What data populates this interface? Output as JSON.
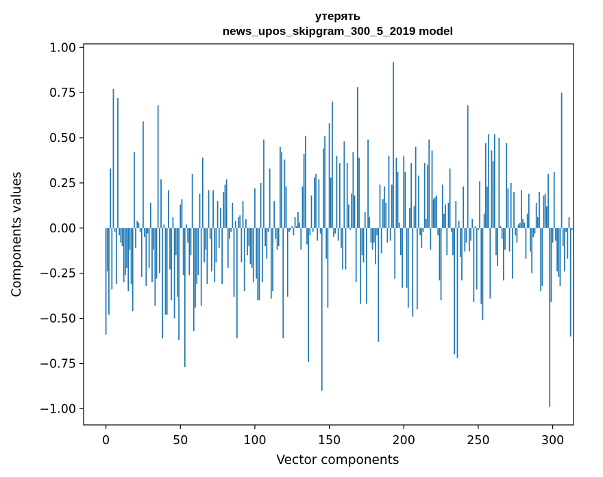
{
  "chart_data": {
    "type": "bar",
    "title_line1": "утерять",
    "title_line2": "news_upos_skipgram_300_5_2019 model",
    "xlabel": "Vector components",
    "ylabel": "Components values",
    "xlim": [
      -15,
      314
    ],
    "ylim": [
      -1.09,
      1.02
    ],
    "xticks": [
      0,
      50,
      100,
      150,
      200,
      250,
      300
    ],
    "yticks": [
      1.0,
      0.75,
      0.5,
      0.25,
      0.0,
      -0.25,
      -0.5,
      -0.75,
      -1.0
    ],
    "ytick_labels": [
      "1.00",
      "0.75",
      "0.50",
      "0.25",
      "0.00",
      "−0.25",
      "−0.50",
      "−0.75",
      "−1.00"
    ],
    "bar_color": "#1f77b4",
    "values": [
      -0.59,
      -0.24,
      -0.48,
      0.33,
      -0.34,
      0.77,
      -0.02,
      -0.31,
      0.72,
      -0.04,
      -0.08,
      -0.1,
      -0.3,
      -0.26,
      -0.22,
      -0.35,
      -0.12,
      -0.31,
      -0.46,
      0.42,
      -0.11,
      0.04,
      0.03,
      -0.02,
      -0.27,
      0.59,
      -0.05,
      -0.32,
      -0.03,
      -0.22,
      0.14,
      -0.3,
      -0.12,
      -0.43,
      -0.28,
      0.68,
      -0.25,
      0.27,
      -0.61,
      0.02,
      -0.48,
      -0.48,
      0.21,
      -0.23,
      -0.4,
      0.06,
      -0.5,
      -0.15,
      -0.38,
      -0.62,
      0.13,
      0.16,
      -0.26,
      -0.77,
      0.02,
      -0.08,
      -0.26,
      -0.15,
      0.3,
      -0.57,
      -0.44,
      -0.31,
      -0.26,
      0.19,
      -0.43,
      0.39,
      -0.19,
      -0.12,
      -0.31,
      0.21,
      -0.06,
      -0.24,
      0.21,
      -0.3,
      -0.19,
      0.15,
      -0.11,
      0.11,
      -0.31,
      0.2,
      0.24,
      0.27,
      -0.22,
      -0.06,
      -0.02,
      0.14,
      -0.38,
      0.04,
      -0.61,
      0.06,
      0.07,
      -0.19,
      0.15,
      -0.35,
      0.05,
      -0.15,
      -0.1,
      -0.2,
      -0.22,
      -0.3,
      0.22,
      -0.28,
      -0.4,
      -0.4,
      0.25,
      -0.3,
      0.49,
      -0.1,
      -0.17,
      -0.02,
      0.33,
      -0.39,
      -0.35,
      0.15,
      -0.06,
      -0.12,
      -0.1,
      0.45,
      0.42,
      -0.61,
      0.38,
      0.23,
      -0.38,
      -0.02,
      -0.01,
      0.01,
      -0.04,
      0.06,
      0.01,
      0.09,
      0.03,
      -0.12,
      0.23,
      0.41,
      0.51,
      -0.09,
      -0.74,
      -0.04,
      0.18,
      -0.02,
      0.28,
      0.3,
      -0.07,
      0.27,
      -0.03,
      -0.9,
      0.44,
      0.51,
      -0.17,
      -0.44,
      0.58,
      0.28,
      0.7,
      -0.05,
      -0.03,
      0.4,
      -0.07,
      0.36,
      -0.11,
      -0.23,
      0.48,
      -0.23,
      0.36,
      0.13,
      -0.01,
      0.19,
      0.42,
      0.18,
      -0.3,
      0.78,
      0.39,
      -0.42,
      -0.15,
      -0.19,
      0.09,
      -0.42,
      0.49,
      0.06,
      -0.08,
      -0.12,
      -0.08,
      -0.2,
      -0.04,
      -0.63,
      0.24,
      -0.14,
      0.16,
      0.23,
      0.14,
      -0.08,
      0.4,
      -0.07,
      0.24,
      0.92,
      -0.28,
      0.39,
      0.31,
      0.03,
      -0.15,
      -0.33,
      0.4,
      0.31,
      -0.33,
      -0.44,
      0.11,
      0.36,
      -0.49,
      0.12,
      0.45,
      -0.45,
      0.29,
      -0.04,
      -0.11,
      -0.02,
      0.36,
      0.05,
      0.35,
      0.49,
      -0.12,
      0.43,
      0.16,
      0.17,
      0.18,
      -0.04,
      -0.29,
      -0.4,
      0.24,
      0.08,
      0.13,
      -0.15,
      0.14,
      0.33,
      -0.02,
      -0.15,
      -0.7,
      0.15,
      -0.72,
      0.04,
      -0.16,
      -0.29,
      0.23,
      -0.13,
      -0.08,
      0.68,
      -0.13,
      -0.07,
      0.05,
      -0.41,
      0.01,
      -0.34,
      -0.01,
      0.26,
      -0.42,
      -0.51,
      0.08,
      0.47,
      0.23,
      0.52,
      -0.39,
      0.43,
      0.37,
      0.52,
      -0.15,
      -0.21,
      0.5,
      0.01,
      -0.06,
      -0.29,
      -0.12,
      0.47,
      0.22,
      -0.13,
      0.25,
      -0.28,
      0.2,
      -0.04,
      -0.08,
      0.02,
      0.03,
      0.21,
      0.05,
      0.03,
      -0.17,
      0.08,
      0.19,
      -0.13,
      -0.25,
      -0.05,
      -0.03,
      0.14,
      0.06,
      0.2,
      -0.35,
      -0.32,
      0.18,
      0.19,
      0.12,
      0.3,
      -0.99,
      -0.41,
      -0.08,
      0.31,
      -0.07,
      -0.24,
      -0.27,
      -0.32,
      0.75,
      -0.1,
      -0.24,
      -0.02,
      -0.17,
      0.06,
      -0.6,
      -0.01
    ]
  }
}
